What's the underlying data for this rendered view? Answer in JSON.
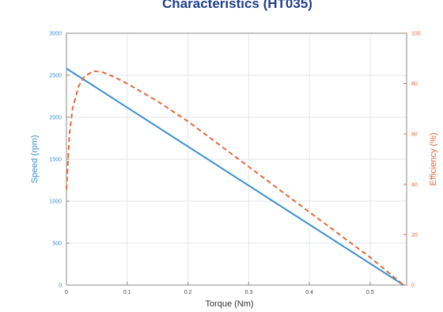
{
  "chart_data": {
    "type": "line",
    "title": "Characteristics (HT035)",
    "xlabel": "Torque (Nm)",
    "ylabel_left": "Speed (rpm)",
    "ylabel_right": "Efficiency (%)",
    "xlim": [
      0,
      0.56
    ],
    "ylim_left": [
      0,
      3000
    ],
    "ylim_right": [
      0,
      100
    ],
    "x_ticks": [
      "0",
      "0.1",
      "0.2",
      "0.3",
      "0.4",
      "0.5"
    ],
    "y_left_ticks": [
      "0",
      "500",
      "1000",
      "1500",
      "2000",
      "2500",
      "3000"
    ],
    "y_right_ticks": [
      "0",
      "20",
      "40",
      "60",
      "80",
      "100"
    ],
    "grid": true,
    "colors": {
      "speed": "#3a8fd1",
      "efficiency": "#e06a3a",
      "title": "#1f3f8f",
      "grid": "#e3e6ea",
      "frame": "#8a8a8a"
    },
    "series": [
      {
        "key": "speed",
        "axis": "left",
        "style": "solid",
        "x": [
          0,
          0.555
        ],
        "y": [
          2580,
          0
        ]
      },
      {
        "key": "efficiency",
        "axis": "right",
        "style": "dashed",
        "x": [
          0,
          0.005,
          0.01,
          0.02,
          0.03,
          0.045,
          0.06,
          0.08,
          0.1,
          0.15,
          0.2,
          0.25,
          0.3,
          0.35,
          0.4,
          0.45,
          0.5,
          0.53,
          0.555
        ],
        "y": [
          38,
          60,
          70,
          79,
          83,
          85,
          84.5,
          82.5,
          80,
          73,
          65,
          56,
          47,
          38,
          29,
          20,
          11,
          5,
          0
        ]
      }
    ]
  }
}
